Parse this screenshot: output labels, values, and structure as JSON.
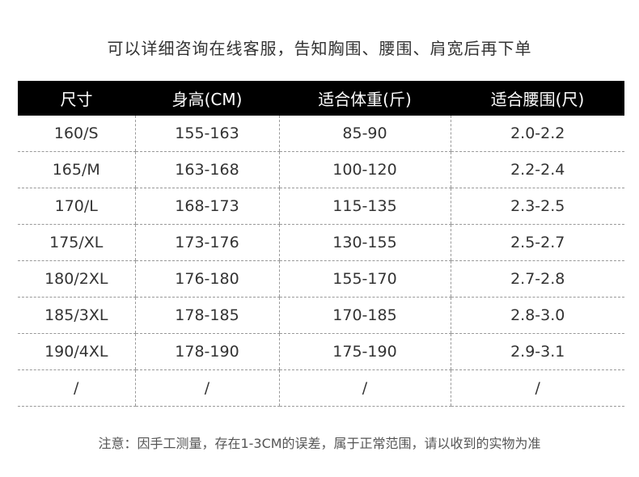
{
  "header": {
    "title": "可以详细咨询在线客服，告知胸围、腰围、肩宽后再下单"
  },
  "table": {
    "columns": [
      "尺寸",
      "身高(CM)",
      "适合体重(斤)",
      "适合腰围(尺)"
    ],
    "rows": [
      [
        "160/S",
        "155-163",
        "85-90",
        "2.0-2.2"
      ],
      [
        "165/M",
        "163-168",
        "100-120",
        "2.2-2.4"
      ],
      [
        "170/L",
        "168-173",
        "115-135",
        "2.3-2.5"
      ],
      [
        "175/XL",
        "173-176",
        "130-155",
        "2.5-2.7"
      ],
      [
        "180/2XL",
        "176-180",
        "155-170",
        "2.7-2.8"
      ],
      [
        "185/3XL",
        "178-185",
        "170-185",
        "2.8-3.0"
      ],
      [
        "190/4XL",
        "178-190",
        "175-190",
        "2.9-3.1"
      ],
      [
        "/",
        "/",
        "/",
        "/"
      ]
    ]
  },
  "footer": {
    "note": "注意：因手工测量，存在1-3CM的误差，属于正常范围，请以收到的实物为准"
  }
}
